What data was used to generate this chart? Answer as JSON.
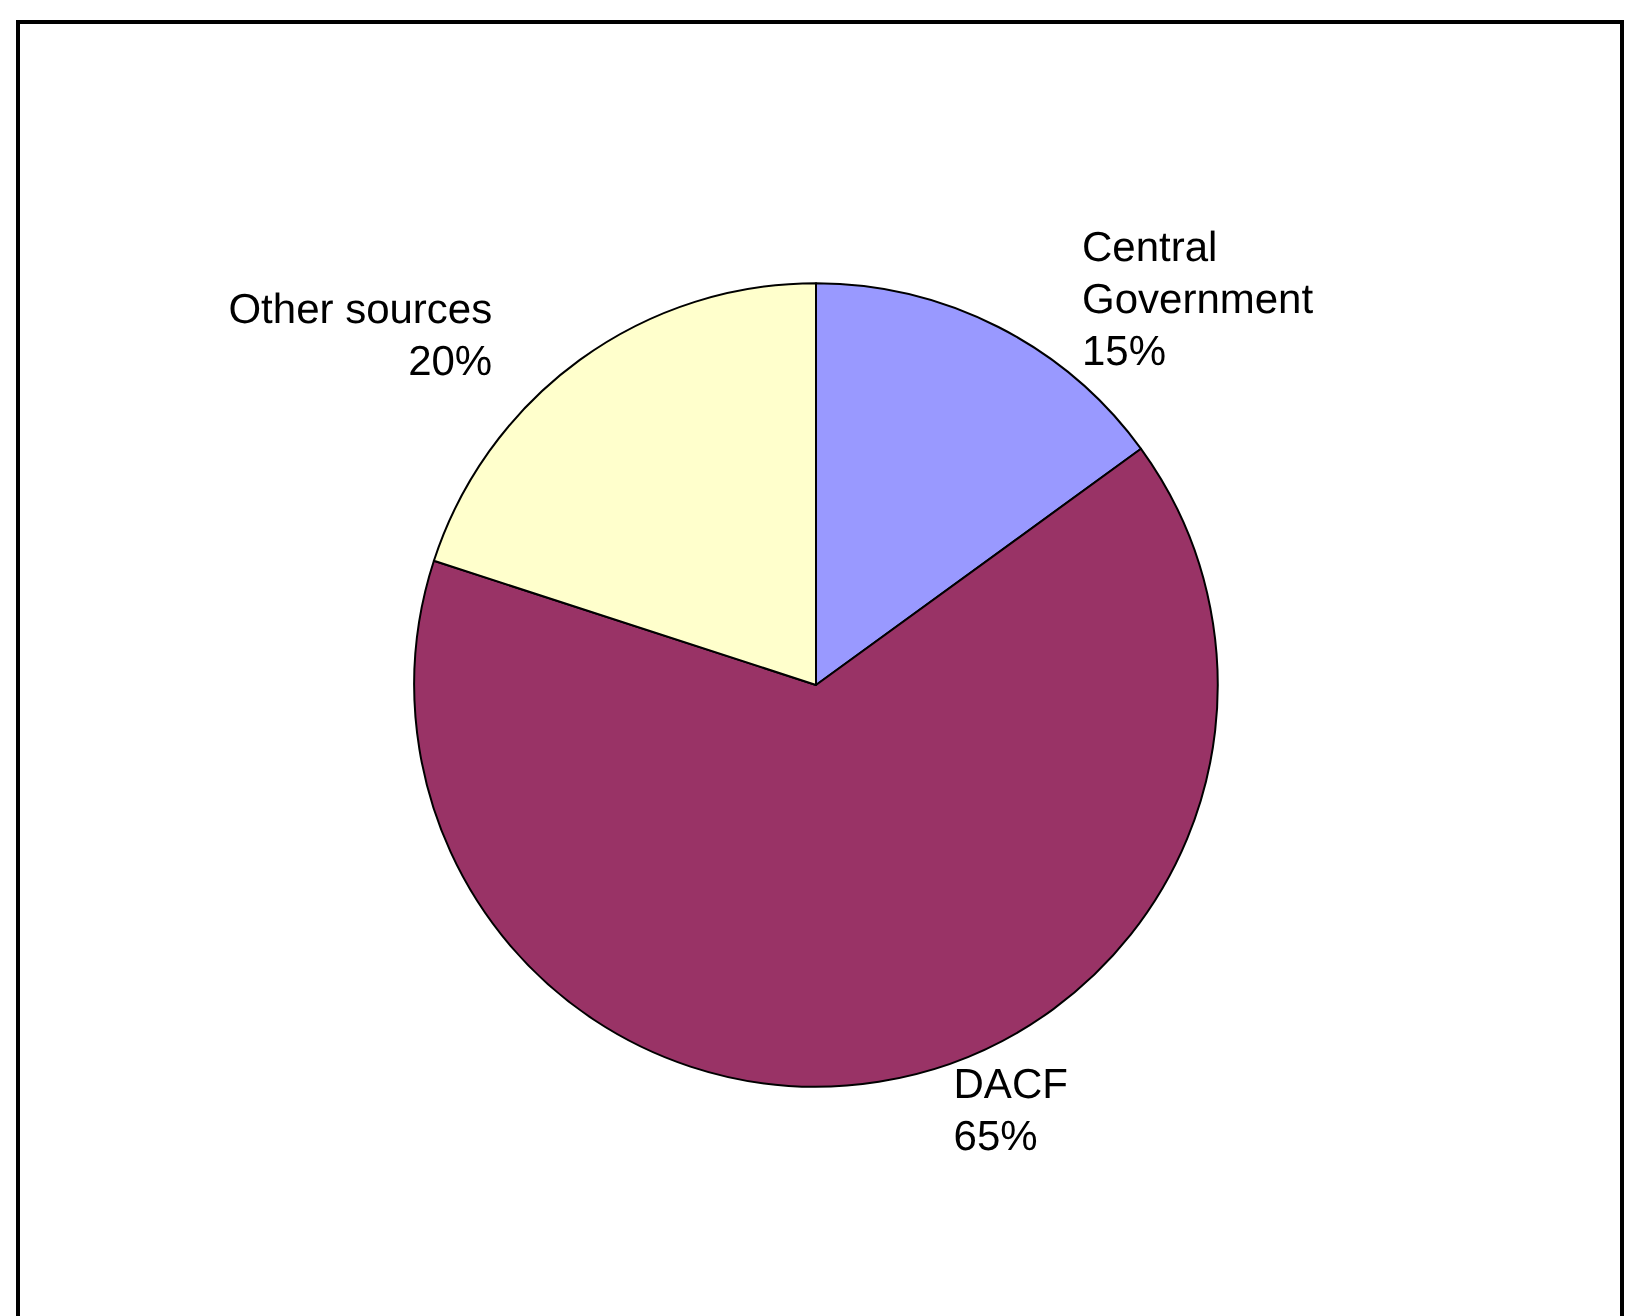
{
  "chart_data": {
    "type": "pie",
    "categories": [
      "Central Government",
      "DACF",
      "Other sources"
    ],
    "values": [
      15,
      65,
      20
    ],
    "colors": [
      "#9999ff",
      "#993366",
      "#ffffcc"
    ],
    "value_labels": [
      "15%",
      "65%",
      "20%"
    ],
    "legend": false
  }
}
